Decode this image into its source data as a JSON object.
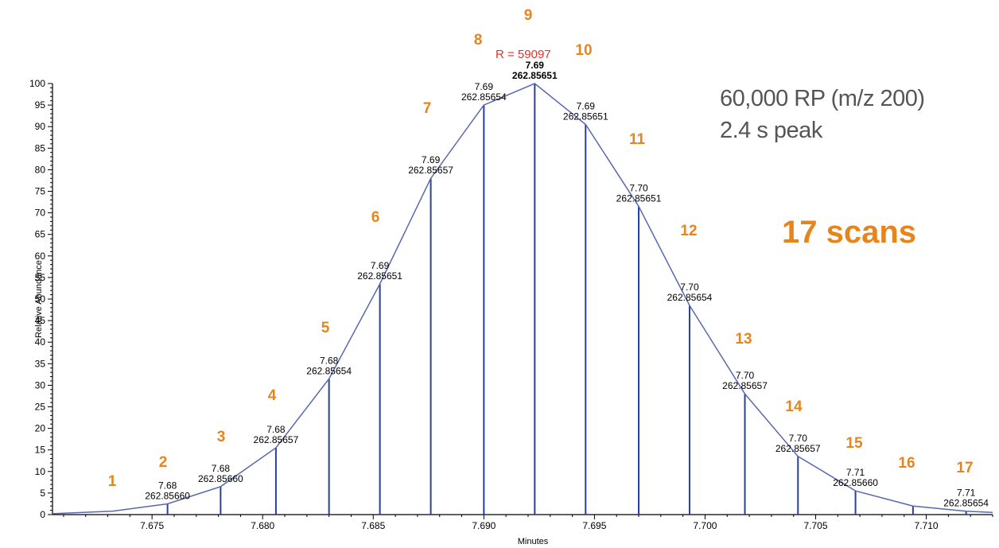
{
  "chart_data": {
    "type": "line",
    "xlabel": "Minutes",
    "ylabel": "Relative Abundance",
    "xlim": [
      7.6705,
      7.713
    ],
    "ylim": [
      0,
      100
    ],
    "x_ticks": [
      "7.675",
      "7.680",
      "7.685",
      "7.690",
      "7.695",
      "7.700",
      "7.705",
      "7.710"
    ],
    "y_ticks": [
      "0",
      "5",
      "10",
      "15",
      "20",
      "25",
      "30",
      "35",
      "40",
      "45",
      "50",
      "55",
      "60",
      "65",
      "70",
      "75",
      "80",
      "85",
      "90",
      "95",
      "100"
    ],
    "curve": [
      {
        "x": 7.6705,
        "y": 0.2
      },
      {
        "x": 7.6732,
        "y": 0.8
      },
      {
        "x": 7.6757,
        "y": 2.5
      },
      {
        "x": 7.6781,
        "y": 6.5
      },
      {
        "x": 7.6806,
        "y": 15.5
      },
      {
        "x": 7.683,
        "y": 31.5
      },
      {
        "x": 7.6853,
        "y": 53.5
      },
      {
        "x": 7.6876,
        "y": 78
      },
      {
        "x": 7.69,
        "y": 95
      },
      {
        "x": 7.6923,
        "y": 100
      },
      {
        "x": 7.6946,
        "y": 90.5
      },
      {
        "x": 7.697,
        "y": 71.5
      },
      {
        "x": 7.6993,
        "y": 48.5
      },
      {
        "x": 7.7018,
        "y": 28
      },
      {
        "x": 7.7042,
        "y": 13.5
      },
      {
        "x": 7.7068,
        "y": 5.5
      },
      {
        "x": 7.7094,
        "y": 2
      },
      {
        "x": 7.7118,
        "y": 0.8
      },
      {
        "x": 7.713,
        "y": 0.5
      }
    ],
    "scans": [
      {
        "num": "1",
        "x": 7.6732,
        "y": 0.8,
        "line": false,
        "label": null
      },
      {
        "num": "2",
        "x": 7.6757,
        "y": 2.5,
        "line": true,
        "label": [
          "7.68",
          "262.85660"
        ]
      },
      {
        "num": "3",
        "x": 7.6781,
        "y": 6.5,
        "line": true,
        "label": [
          "7.68",
          "262.85660"
        ]
      },
      {
        "num": "4",
        "x": 7.6806,
        "y": 15.5,
        "line": true,
        "label": [
          "7.68",
          "262.85657"
        ]
      },
      {
        "num": "5",
        "x": 7.683,
        "y": 31.5,
        "line": true,
        "label": [
          "7.68",
          "262.85654"
        ]
      },
      {
        "num": "6",
        "x": 7.6853,
        "y": 53.5,
        "line": true,
        "label": [
          "7.69",
          "262.85651"
        ]
      },
      {
        "num": "7",
        "x": 7.6876,
        "y": 78,
        "line": true,
        "label": [
          "7.69",
          "262.85657"
        ]
      },
      {
        "num": "8",
        "x": 7.69,
        "y": 95,
        "line": true,
        "label": [
          "7.69",
          "262.85654"
        ]
      },
      {
        "num": "9",
        "x": 7.6923,
        "y": 100,
        "line": true,
        "label": [
          "7.69",
          "262.85651"
        ]
      },
      {
        "num": "10",
        "x": 7.6946,
        "y": 90.5,
        "line": true,
        "label": [
          "7.69",
          "262.85651"
        ]
      },
      {
        "num": "11",
        "x": 7.697,
        "y": 71.5,
        "line": true,
        "label": [
          "7.70",
          "262.85651"
        ]
      },
      {
        "num": "12",
        "x": 7.6993,
        "y": 48.5,
        "line": true,
        "label": [
          "7.70",
          "262.85654"
        ]
      },
      {
        "num": "13",
        "x": 7.7018,
        "y": 28,
        "line": true,
        "label": [
          "7.70",
          "262.85657"
        ]
      },
      {
        "num": "14",
        "x": 7.7042,
        "y": 13.5,
        "line": true,
        "label": [
          "7.70",
          "262.85657"
        ]
      },
      {
        "num": "15",
        "x": 7.7068,
        "y": 5.5,
        "line": true,
        "label": [
          "7.71",
          "262.85660"
        ]
      },
      {
        "num": "16",
        "x": 7.7094,
        "y": 2,
        "line": true,
        "label": null
      },
      {
        "num": "17",
        "x": 7.7118,
        "y": 0.8,
        "line": true,
        "label": [
          "7.71",
          "262.85654"
        ]
      }
    ],
    "annotations": {
      "resolution": "R = 59097",
      "resolving_power": "60,000 RP (m/z 200)",
      "peak_width": "2.4 s peak",
      "scan_total": "17 scans"
    },
    "colors": {
      "curve": "#5868b0",
      "stick": "#2a3f9e",
      "scan_number": "#e8841c",
      "resolution": "#e8302a",
      "info_text": "#555555"
    }
  }
}
